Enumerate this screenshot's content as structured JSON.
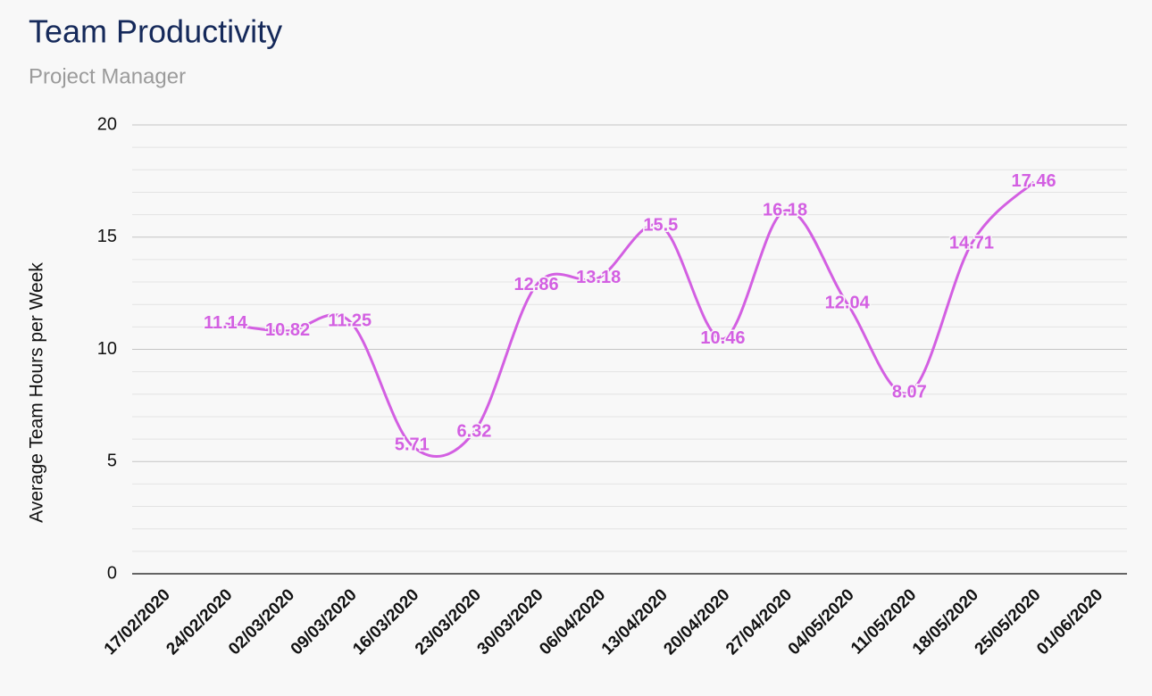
{
  "chart_data": {
    "type": "line",
    "title": "Team Productivity",
    "subtitle": "Project Manager",
    "y_label": "Average Team Hours per Week",
    "categories": [
      "17/02/2020",
      "24/02/2020",
      "02/03/2020",
      "09/03/2020",
      "16/03/2020",
      "23/03/2020",
      "30/03/2020",
      "06/04/2020",
      "13/04/2020",
      "20/04/2020",
      "27/04/2020",
      "04/05/2020",
      "11/05/2020",
      "18/05/2020",
      "25/05/2020",
      "01/06/2020"
    ],
    "series": [
      {
        "name": "Average Team Hours per Week",
        "color": "#d35fe2",
        "values": [
          null,
          11.14,
          10.82,
          11.25,
          5.71,
          6.32,
          12.86,
          13.18,
          15.5,
          10.46,
          16.18,
          12.04,
          8.07,
          14.71,
          17.46,
          null
        ]
      }
    ],
    "ylim": [
      0,
      20
    ],
    "yticks": [
      0,
      5,
      10,
      15,
      20
    ],
    "minor_yticks": [
      1,
      2,
      3,
      4,
      6,
      7,
      8,
      9,
      11,
      12,
      13,
      14,
      16,
      17,
      18,
      19
    ],
    "grid": true,
    "smooth": true,
    "data_labels": true
  }
}
